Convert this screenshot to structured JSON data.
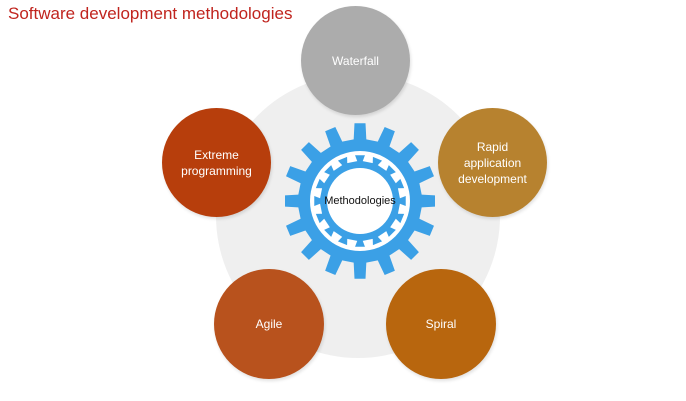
{
  "title": "Software development methodologies",
  "center": {
    "label": "Methodologies"
  },
  "nodes": [
    {
      "id": "waterfall",
      "label": "Waterfall",
      "color": "#acacac"
    },
    {
      "id": "rad",
      "label": "Rapid\napplication\ndevelopment",
      "color": "#b7822f"
    },
    {
      "id": "spiral",
      "label": "Spiral",
      "color": "#b8660e"
    },
    {
      "id": "agile",
      "label": "Agile",
      "color": "#b8521d"
    },
    {
      "id": "xp",
      "label": "Extreme\nprogramming",
      "color": "#b73e0c"
    }
  ],
  "colors": {
    "title": "#c0241e",
    "gear": "#3ba0e6",
    "backdrop": "#efefef"
  }
}
